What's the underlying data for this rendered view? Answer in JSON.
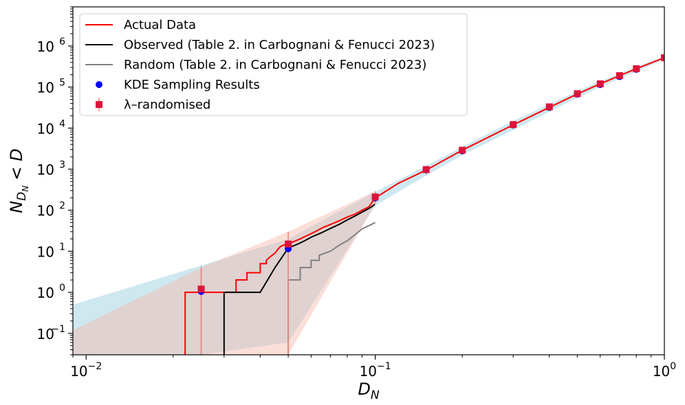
{
  "chart_data": {
    "type": "line",
    "title": "",
    "xlabel_base": "D",
    "xlabel_sub": "N",
    "ylabel_base": "N",
    "ylabel_sub": "D",
    "ylabel_subsub": "N",
    "ylabel_rest": " < D",
    "xscale": "log",
    "yscale": "log",
    "xlim": [
      0.009,
      1.0
    ],
    "ylim": [
      0.03,
      9000000
    ],
    "x_ticks": [
      {
        "value": 0.01,
        "base": "10",
        "exp": "−2"
      },
      {
        "value": 0.1,
        "base": "10",
        "exp": "−1"
      },
      {
        "value": 1,
        "base": "10",
        "exp": "0"
      }
    ],
    "y_ticks": [
      {
        "value": 0.1,
        "base": "10",
        "exp": "−1"
      },
      {
        "value": 1,
        "base": "10",
        "exp": "0"
      },
      {
        "value": 10,
        "base": "10",
        "exp": "1"
      },
      {
        "value": 100,
        "base": "10",
        "exp": "2"
      },
      {
        "value": 1000,
        "base": "10",
        "exp": "3"
      },
      {
        "value": 10000,
        "base": "10",
        "exp": "4"
      },
      {
        "value": 100000,
        "base": "10",
        "exp": "5"
      },
      {
        "value": 1000000,
        "base": "10",
        "exp": "6"
      }
    ],
    "grid": false,
    "legend_position": "upper-left",
    "legend": [
      {
        "label": "Actual Data",
        "type": "line",
        "color": "#ff0000"
      },
      {
        "label": "Observed (Table 2. in Carbognani & Fenucci 2023)",
        "type": "line",
        "color": "#000000"
      },
      {
        "label": "Random (Table 2. in Carbognani & Fenucci 2023)",
        "type": "line",
        "color": "#808080"
      },
      {
        "label": "KDE Sampling Results",
        "type": "circle",
        "color": "#0000ff"
      },
      {
        "label": "λ–randomised",
        "type": "square",
        "color": "#dc143c"
      }
    ],
    "series": [
      {
        "name": "Actual Data",
        "type": "step",
        "color": "#ff0000",
        "points": [
          [
            0.022,
            0.03
          ],
          [
            0.022,
            1
          ],
          [
            0.033,
            1
          ],
          [
            0.033,
            2
          ],
          [
            0.036,
            2
          ],
          [
            0.036,
            3
          ],
          [
            0.04,
            3
          ],
          [
            0.04,
            5
          ],
          [
            0.042,
            5
          ],
          [
            0.042,
            6
          ],
          [
            0.043,
            7
          ],
          [
            0.044,
            8
          ],
          [
            0.045,
            9
          ],
          [
            0.046,
            11
          ],
          [
            0.047,
            13
          ],
          [
            0.048,
            14
          ],
          [
            0.05,
            15
          ],
          [
            0.052,
            17
          ],
          [
            0.055,
            20
          ],
          [
            0.058,
            24
          ],
          [
            0.062,
            30
          ],
          [
            0.066,
            38
          ],
          [
            0.07,
            45
          ],
          [
            0.075,
            55
          ],
          [
            0.08,
            68
          ],
          [
            0.085,
            80
          ],
          [
            0.09,
            100
          ],
          [
            0.095,
            120
          ],
          [
            0.1,
            200
          ],
          [
            0.12,
            450
          ],
          [
            0.15,
            950
          ],
          [
            0.2,
            2900
          ],
          [
            0.3,
            12000
          ],
          [
            0.4,
            32000
          ],
          [
            0.5,
            68000
          ],
          [
            0.6,
            120000
          ],
          [
            0.7,
            190000
          ],
          [
            0.8,
            280000
          ],
          [
            1.0,
            520000
          ]
        ]
      },
      {
        "name": "Observed (Table 2. in Carbognani & Fenucci 2023)",
        "type": "step",
        "color": "#000000",
        "points": [
          [
            0.03,
            0.03
          ],
          [
            0.03,
            1
          ],
          [
            0.04,
            1
          ],
          [
            0.045,
            4
          ],
          [
            0.05,
            12
          ],
          [
            0.054,
            15
          ],
          [
            0.057,
            18
          ],
          [
            0.06,
            22
          ],
          [
            0.065,
            28
          ],
          [
            0.07,
            36
          ],
          [
            0.075,
            45
          ],
          [
            0.08,
            58
          ],
          [
            0.085,
            72
          ],
          [
            0.09,
            90
          ],
          [
            0.095,
            110
          ],
          [
            0.1,
            140
          ]
        ]
      },
      {
        "name": "Random (Table 2. in Carbognani & Fenucci 2023)",
        "type": "step",
        "color": "#808080",
        "points": [
          [
            0.05,
            0.03
          ],
          [
            0.05,
            2
          ],
          [
            0.055,
            2
          ],
          [
            0.055,
            4
          ],
          [
            0.06,
            4
          ],
          [
            0.06,
            6
          ],
          [
            0.064,
            6
          ],
          [
            0.064,
            8
          ],
          [
            0.07,
            10
          ],
          [
            0.075,
            14
          ],
          [
            0.08,
            18
          ],
          [
            0.085,
            25
          ],
          [
            0.09,
            35
          ],
          [
            0.1,
            50
          ]
        ]
      }
    ],
    "bands": [
      {
        "name": "KDE band",
        "color": "#add8e6",
        "opacity": 0.6,
        "x": [
          0.009,
          0.025,
          0.05,
          0.1,
          0.15,
          0.2,
          0.3,
          0.4,
          0.5,
          0.6,
          0.7,
          0.8,
          1.0
        ],
        "upper": [
          0.5,
          4.5,
          20,
          280,
          1200,
          3500,
          15000,
          38000,
          80000,
          140000,
          210000,
          310000,
          560000
        ],
        "lower": [
          0.03,
          0.03,
          0.06,
          130,
          700,
          2200,
          9000,
          25000,
          55000,
          100000,
          160000,
          240000,
          470000
        ]
      },
      {
        "name": "randomised band",
        "color": "#f4b8a8",
        "opacity": 0.45,
        "x": [
          0.009,
          0.025,
          0.05,
          0.1
        ],
        "upper": [
          0.12,
          4,
          30,
          290
        ],
        "lower": [
          0.03,
          0.03,
          0.03,
          140
        ]
      }
    ],
    "kde_points": {
      "name": "KDE Sampling Results",
      "color": "#0000ff",
      "x": [
        0.025,
        0.05,
        0.1,
        0.15,
        0.2,
        0.3,
        0.4,
        0.5,
        0.6,
        0.7,
        0.8,
        1.0
      ],
      "y": [
        1.05,
        11.5,
        200,
        960,
        2800,
        12000,
        32000,
        67000,
        115000,
        180000,
        270000,
        510000
      ],
      "err_low": [
        0.03,
        0.03,
        130,
        700,
        2200,
        9000,
        25000,
        55000,
        95000,
        150000,
        230000,
        460000
      ],
      "err_high": [
        4.5,
        20,
        280,
        1200,
        3500,
        15000,
        38000,
        80000,
        140000,
        210000,
        310000,
        560000
      ]
    },
    "lambda_points": {
      "name": "λ–randomised",
      "color": "#dc143c",
      "x": [
        0.025,
        0.05,
        0.1,
        0.15,
        0.2,
        0.3,
        0.4,
        0.5,
        0.6,
        0.7,
        0.8,
        1.0
      ],
      "y": [
        1.2,
        15,
        210,
        980,
        2900,
        12200,
        33000,
        69000,
        120000,
        190000,
        280000,
        520000
      ],
      "err_low": [
        0.03,
        0.03,
        150,
        780,
        2500,
        10500,
        29000,
        62000,
        108000,
        172000,
        255000,
        485000
      ],
      "err_high": [
        4,
        30,
        290,
        1200,
        3400,
        14000,
        37000,
        78000,
        135000,
        210000,
        305000,
        555000
      ]
    }
  }
}
